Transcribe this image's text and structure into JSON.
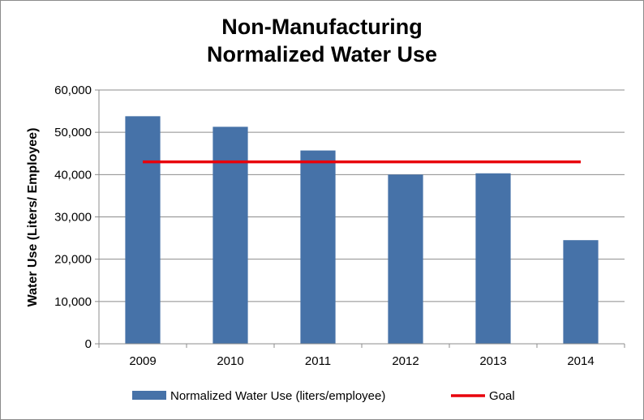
{
  "chart_data": {
    "type": "bar",
    "title_lines": [
      "Non-Manufacturing",
      "Normalized Water Use"
    ],
    "xlabel": "",
    "ylabel": "Water Use (Liters/ Employee)",
    "categories": [
      "2009",
      "2010",
      "2011",
      "2012",
      "2013",
      "2014"
    ],
    "series": [
      {
        "name": "Normalized Water Use (liters/employee)",
        "kind": "bar",
        "color": "#4672a8",
        "values": [
          53800,
          51300,
          45700,
          40000,
          40300,
          24500
        ]
      },
      {
        "name": "Goal",
        "kind": "line",
        "color": "#e8000b",
        "values": [
          43000,
          43000,
          43000,
          43000,
          43000,
          43000
        ]
      }
    ],
    "ylim": [
      0,
      60000
    ],
    "yticks": [
      0,
      10000,
      20000,
      30000,
      40000,
      50000,
      60000
    ],
    "ytick_labels": [
      "0",
      "10,000",
      "20,000",
      "30,000",
      "40,000",
      "50,000",
      "60,000"
    ],
    "grid": true,
    "legend_position": "bottom"
  }
}
